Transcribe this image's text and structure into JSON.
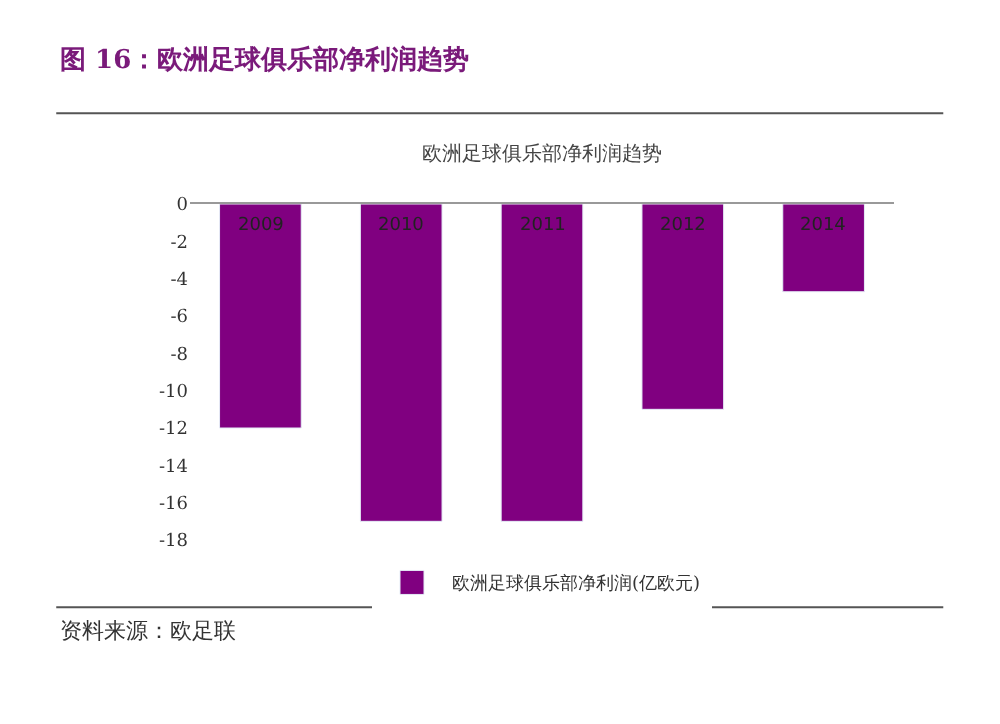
{
  "chart_data": {
    "type": "bar",
    "title": "图 16：欧洲足球俱乐部净利润趋势",
    "subtitle": "欧洲足球俱乐部净利润趋势",
    "categories": [
      "2009",
      "2010",
      "2011",
      "2012",
      "2014"
    ],
    "series": [
      {
        "name": "欧洲足球俱乐部净利润(亿欧元)",
        "color": "#800080",
        "values": [
          -12,
          -17,
          -17,
          -11,
          -4.7
        ]
      }
    ],
    "ylim": [
      -18,
      0
    ],
    "yticks": [
      0,
      -2,
      -4,
      -6,
      -8,
      -10,
      -12,
      -14,
      -16,
      -18
    ],
    "legend": "bottom",
    "tick_labels": "y",
    "annotations": [
      "资料来源：欧足联"
    ]
  }
}
